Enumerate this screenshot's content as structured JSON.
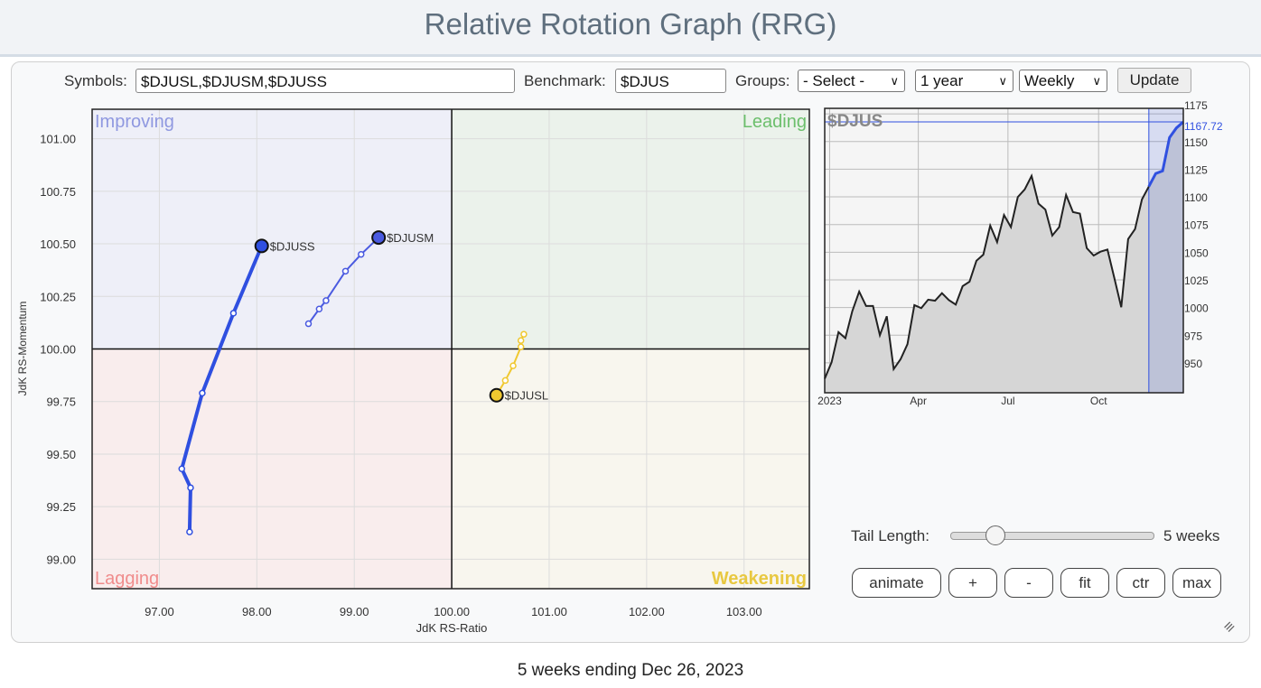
{
  "header": {
    "title": "Relative Rotation Graph (RRG)"
  },
  "controls": {
    "symbols_label": "Symbols:",
    "symbols_value": "$DJUSL,$DJUSM,$DJUSS",
    "benchmark_label": "Benchmark:",
    "benchmark_value": "$DJUS",
    "groups_label": "Groups:",
    "groups_value": "- Select -",
    "period_value": "1 year",
    "interval_value": "Weekly",
    "update_label": "Update"
  },
  "tail": {
    "label": "Tail Length:",
    "value_text": "5 weeks",
    "weeks": 5,
    "slider_fraction": 0.1
  },
  "buttons": [
    "animate",
    "+",
    "-",
    "fit",
    "ctr",
    "max"
  ],
  "footer": "5 weeks ending Dec 26, 2023",
  "chart_data": [
    {
      "type": "scatter",
      "xlabel": "JdK RS-Ratio",
      "ylabel": "JdK RS-Momentum",
      "xlim": [
        96.31,
        103.67
      ],
      "ylim": [
        98.86,
        101.14
      ],
      "xticks": [
        "97.00",
        "98.00",
        "99.00",
        "100.00",
        "101.00",
        "102.00",
        "103.00"
      ],
      "yticks": [
        "99.00",
        "99.25",
        "99.50",
        "99.75",
        "100.00",
        "100.25",
        "100.50",
        "100.75",
        "101.00"
      ],
      "grid": true,
      "quadrants": {
        "Improving": {
          "label": "Improving",
          "bg": "#eeeff8",
          "color": "#8f98e0"
        },
        "Leading": {
          "label": "Leading",
          "bg": "#ebf2eb",
          "color": "#6cbf6c"
        },
        "Lagging": {
          "label": "Lagging",
          "bg": "#f9eded",
          "color": "#f08c8c"
        },
        "Weakening": {
          "label": "Weakening",
          "bg": "#f8f6ee",
          "color": "#e8c840"
        }
      },
      "series": [
        {
          "name": "$DJUSS",
          "color": "#2f4fe0",
          "x": [
            97.31,
            97.32,
            97.23,
            97.44,
            97.76,
            98.05
          ],
          "y": [
            99.13,
            99.34,
            99.43,
            99.79,
            100.17,
            100.49
          ]
        },
        {
          "name": "$DJUSM",
          "color": "#4a5ae0",
          "x": [
            98.53,
            98.64,
            98.71,
            98.91,
            99.07,
            99.25
          ],
          "y": [
            100.12,
            100.19,
            100.23,
            100.37,
            100.45,
            100.53
          ]
        },
        {
          "name": "$DJUSL",
          "color": "#f0c830",
          "x": [
            100.74,
            100.71,
            100.71,
            100.63,
            100.55,
            100.46
          ],
          "y": [
            100.07,
            100.04,
            100.01,
            99.92,
            99.85,
            99.78
          ]
        }
      ]
    },
    {
      "type": "area",
      "title": "$DJUS",
      "ylim": [
        923,
        1180
      ],
      "yticks": [
        "950",
        "975",
        "1000",
        "1025",
        "1050",
        "1075",
        "1100",
        "1125",
        "1150",
        "1175"
      ],
      "xticks": [
        {
          "label": "2023",
          "date": "2023-01-01"
        },
        {
          "label": "Apr",
          "date": "2023-04-01"
        },
        {
          "label": "Jul",
          "date": "2023-07-01"
        },
        {
          "label": "Oct",
          "date": "2023-10-01"
        }
      ],
      "last_value": "1167.72",
      "highlight_start": "2023-11-21",
      "line_color": "#222222",
      "highlight_color": "#3050e0",
      "dates": [
        "2022-12-27",
        "2023-01-03",
        "2023-01-10",
        "2023-01-17",
        "2023-01-24",
        "2023-01-31",
        "2023-02-07",
        "2023-02-14",
        "2023-02-21",
        "2023-02-28",
        "2023-03-07",
        "2023-03-14",
        "2023-03-21",
        "2023-03-28",
        "2023-04-04",
        "2023-04-11",
        "2023-04-18",
        "2023-04-25",
        "2023-05-02",
        "2023-05-09",
        "2023-05-16",
        "2023-05-23",
        "2023-05-30",
        "2023-06-06",
        "2023-06-13",
        "2023-06-20",
        "2023-06-27",
        "2023-07-04",
        "2023-07-11",
        "2023-07-18",
        "2023-07-25",
        "2023-08-01",
        "2023-08-08",
        "2023-08-15",
        "2023-08-22",
        "2023-08-29",
        "2023-09-05",
        "2023-09-12",
        "2023-09-19",
        "2023-09-26",
        "2023-10-03",
        "2023-10-10",
        "2023-10-17",
        "2023-10-24",
        "2023-10-31",
        "2023-11-07",
        "2023-11-14",
        "2023-11-21",
        "2023-11-28",
        "2023-12-05",
        "2023-12-12",
        "2023-12-19",
        "2023-12-26"
      ],
      "values": [
        935.7,
        950.6,
        977.8,
        972.3,
        996.7,
        1014.4,
        1001.4,
        1001.4,
        975.0,
        992.1,
        944.4,
        953.3,
        966.9,
        1002.2,
        999.5,
        1007.1,
        1006.2,
        1013.0,
        1006.8,
        1002.7,
        1019.3,
        1023.4,
        1042.3,
        1047.8,
        1074.1,
        1059.2,
        1083.6,
        1072.7,
        1099.9,
        1106.7,
        1118.9,
        1093.9,
        1088.5,
        1065.1,
        1072.7,
        1101.8,
        1086.3,
        1084.9,
        1053.7,
        1047.0,
        1050.5,
        1052.4,
        1026.6,
        1000.3,
        1061.9,
        1070.9,
        1097.7,
        1109.4,
        1121.1,
        1123.5,
        1153.6,
        1162.3,
        1167.72
      ]
    }
  ]
}
